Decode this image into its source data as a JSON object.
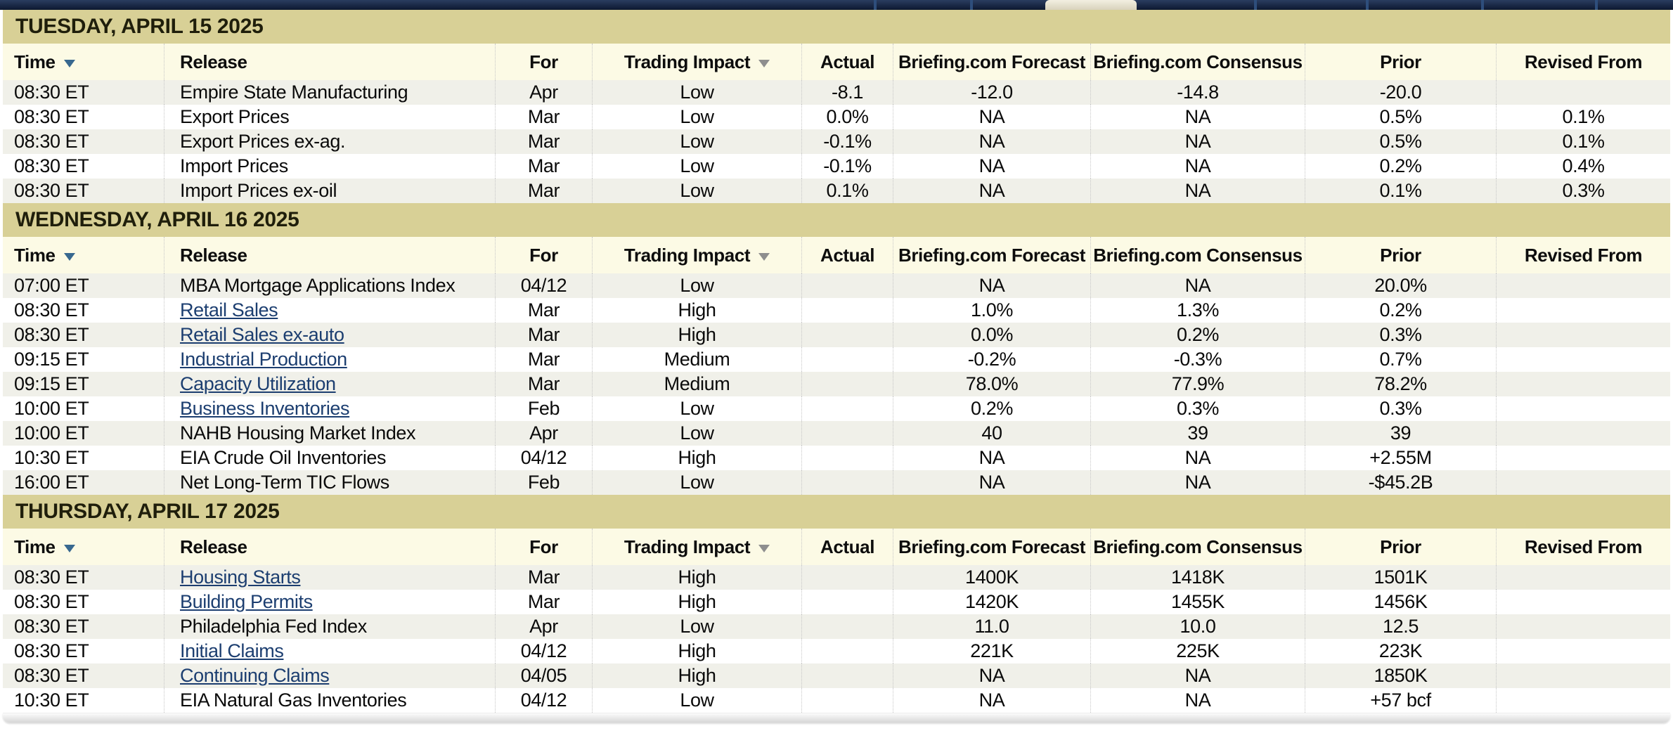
{
  "colors": {
    "day_band": "#d8d096",
    "header_bg": "#fcfae5",
    "row_alt": "#f0f0e9",
    "link": "#1c3e70",
    "nav_bg": "#16233f",
    "sort_arrow": "#38688f",
    "filter_arrow": "#8e8e8e"
  },
  "table": {
    "columns": [
      {
        "label": "Time",
        "sort_icon": true
      },
      {
        "label": "Release"
      },
      {
        "label": "For"
      },
      {
        "label": "Trading Impact",
        "filter_icon": true
      },
      {
        "label": "Actual"
      },
      {
        "label": "Briefing.com Forecast"
      },
      {
        "label": "Briefing.com Consensus"
      },
      {
        "label": "Prior"
      },
      {
        "label": "Revised From"
      }
    ],
    "sections": [
      {
        "date": "TUESDAY, APRIL 15 2025",
        "rows": [
          {
            "time": "08:30 ET",
            "release": "Empire State Manufacturing",
            "link": false,
            "for": "Apr",
            "impact": "Low",
            "actual": "-8.1",
            "forecast": "-12.0",
            "consensus": "-14.8",
            "prior": "-20.0",
            "revised": ""
          },
          {
            "time": "08:30 ET",
            "release": "Export Prices",
            "link": false,
            "for": "Mar",
            "impact": "Low",
            "actual": "0.0%",
            "forecast": "NA",
            "consensus": "NA",
            "prior": "0.5%",
            "revised": "0.1%"
          },
          {
            "time": "08:30 ET",
            "release": "Export Prices ex-ag.",
            "link": false,
            "for": "Mar",
            "impact": "Low",
            "actual": "-0.1%",
            "forecast": "NA",
            "consensus": "NA",
            "prior": "0.5%",
            "revised": "0.1%"
          },
          {
            "time": "08:30 ET",
            "release": "Import Prices",
            "link": false,
            "for": "Mar",
            "impact": "Low",
            "actual": "-0.1%",
            "forecast": "NA",
            "consensus": "NA",
            "prior": "0.2%",
            "revised": "0.4%"
          },
          {
            "time": "08:30 ET",
            "release": "Import Prices ex-oil",
            "link": false,
            "for": "Mar",
            "impact": "Low",
            "actual": "0.1%",
            "forecast": "NA",
            "consensus": "NA",
            "prior": "0.1%",
            "revised": "0.3%"
          }
        ]
      },
      {
        "date": "WEDNESDAY, APRIL 16 2025",
        "rows": [
          {
            "time": "07:00 ET",
            "release": "MBA Mortgage Applications Index",
            "link": false,
            "for": "04/12",
            "impact": "Low",
            "actual": "",
            "forecast": "NA",
            "consensus": "NA",
            "prior": "20.0%",
            "revised": ""
          },
          {
            "time": "08:30 ET",
            "release": "Retail Sales",
            "link": true,
            "for": "Mar",
            "impact": "High",
            "actual": "",
            "forecast": "1.0%",
            "consensus": "1.3%",
            "prior": "0.2%",
            "revised": ""
          },
          {
            "time": "08:30 ET",
            "release": "Retail Sales ex-auto",
            "link": true,
            "for": "Mar",
            "impact": "High",
            "actual": "",
            "forecast": "0.0%",
            "consensus": "0.2%",
            "prior": "0.3%",
            "revised": ""
          },
          {
            "time": "09:15 ET",
            "release": "Industrial Production",
            "link": true,
            "for": "Mar",
            "impact": "Medium",
            "actual": "",
            "forecast": "-0.2%",
            "consensus": "-0.3%",
            "prior": "0.7%",
            "revised": ""
          },
          {
            "time": "09:15 ET",
            "release": "Capacity Utilization",
            "link": true,
            "for": "Mar",
            "impact": "Medium",
            "actual": "",
            "forecast": "78.0%",
            "consensus": "77.9%",
            "prior": "78.2%",
            "revised": ""
          },
          {
            "time": "10:00 ET",
            "release": "Business Inventories",
            "link": true,
            "for": "Feb",
            "impact": "Low",
            "actual": "",
            "forecast": "0.2%",
            "consensus": "0.3%",
            "prior": "0.3%",
            "revised": ""
          },
          {
            "time": "10:00 ET",
            "release": "NAHB Housing Market Index",
            "link": false,
            "for": "Apr",
            "impact": "Low",
            "actual": "",
            "forecast": "40",
            "consensus": "39",
            "prior": "39",
            "revised": ""
          },
          {
            "time": "10:30 ET",
            "release": "EIA Crude Oil Inventories",
            "link": false,
            "for": "04/12",
            "impact": "High",
            "actual": "",
            "forecast": "NA",
            "consensus": "NA",
            "prior": "+2.55M",
            "revised": ""
          },
          {
            "time": "16:00 ET",
            "release": "Net Long-Term TIC Flows",
            "link": false,
            "for": "Feb",
            "impact": "Low",
            "actual": "",
            "forecast": "NA",
            "consensus": "NA",
            "prior": "-$45.2B",
            "revised": ""
          }
        ]
      },
      {
        "date": "THURSDAY, APRIL 17 2025",
        "rows": [
          {
            "time": "08:30 ET",
            "release": "Housing Starts",
            "link": true,
            "for": "Mar",
            "impact": "High",
            "actual": "",
            "forecast": "1400K",
            "consensus": "1418K",
            "prior": "1501K",
            "revised": ""
          },
          {
            "time": "08:30 ET",
            "release": "Building Permits",
            "link": true,
            "for": "Mar",
            "impact": "High",
            "actual": "",
            "forecast": "1420K",
            "consensus": "1455K",
            "prior": "1456K",
            "revised": ""
          },
          {
            "time": "08:30 ET",
            "release": "Philadelphia Fed Index",
            "link": false,
            "for": "Apr",
            "impact": "Low",
            "actual": "",
            "forecast": "11.0",
            "consensus": "10.0",
            "prior": "12.5",
            "revised": ""
          },
          {
            "time": "08:30 ET",
            "release": "Initial Claims",
            "link": true,
            "for": "04/12",
            "impact": "High",
            "actual": "",
            "forecast": "221K",
            "consensus": "225K",
            "prior": "223K",
            "revised": ""
          },
          {
            "time": "08:30 ET",
            "release": "Continuing Claims",
            "link": true,
            "for": "04/05",
            "impact": "High",
            "actual": "",
            "forecast": "NA",
            "consensus": "NA",
            "prior": "1850K",
            "revised": ""
          },
          {
            "time": "10:30 ET",
            "release": "EIA Natural Gas Inventories",
            "link": false,
            "for": "04/12",
            "impact": "Low",
            "actual": "",
            "forecast": "NA",
            "consensus": "NA",
            "prior": "+57 bcf",
            "revised": ""
          }
        ]
      }
    ]
  }
}
